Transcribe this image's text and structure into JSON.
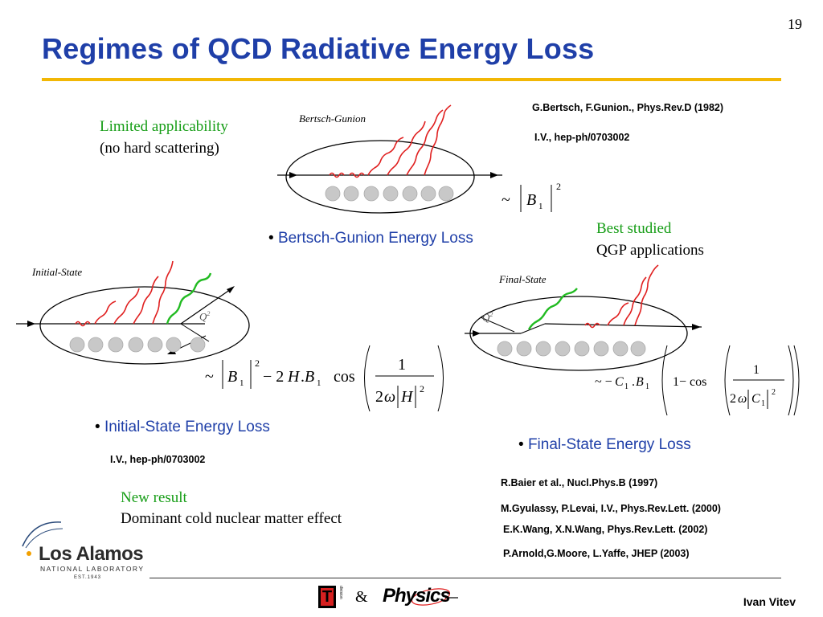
{
  "slide": {
    "number": "19",
    "title": "Regimes of QCD Radiative Energy Loss"
  },
  "top_right_refs": {
    "ref1": "G.Bertsch, F.Gunion., Phys.Rev.D  (1982)",
    "ref2": "I.V., hep-ph/0703002"
  },
  "limited": {
    "line1": "Limited applicability",
    "line2": "(no hard scattering)"
  },
  "best": {
    "line1": "Best studied",
    "line2": "QGP applications"
  },
  "figures": {
    "bg_label": "Bertsch-Gunion",
    "is_label": "Initial-State",
    "fs_label": "Final-State",
    "q2": "Q",
    "q2_exp": "2"
  },
  "bullets": {
    "bg": "Bertsch-Gunion Energy Loss",
    "is": "Initial-State Energy Loss",
    "fs": "Final-State Energy Loss"
  },
  "is_ref": "I.V., hep-ph/0703002",
  "new_result": {
    "line1": "New result",
    "line2": "Dominant cold nuclear matter effect"
  },
  "fs_refs": [
    "R.Baier et al., Nucl.Phys.B (1997)",
    "M.Gyulassy, P.Levai, I.V., Phys.Rev.Lett. (2000)",
    "E.K.Wang, X.N.Wang, Phys.Rev.Lett. (2002)",
    "P.Arnold,G.Moore, L.Yaffe, JHEP (2003)"
  ],
  "footer": {
    "logo_main": "Los Alamos",
    "logo_sub": "NATIONAL LABORATORY",
    "logo_est": "EST.1943",
    "t_div": "T",
    "t_div_side": "division",
    "ampersand": "&",
    "physics_logo": "Physics",
    "author": "Ivan Vitev"
  },
  "colors": {
    "title_blue": "#1f3fa8",
    "rule_gold": "#f2b705",
    "green_text": "#169d16",
    "gluon_red": "#e02020",
    "gluon_green": "#22bb22",
    "nucleon_gray": "#c8c8c8"
  }
}
